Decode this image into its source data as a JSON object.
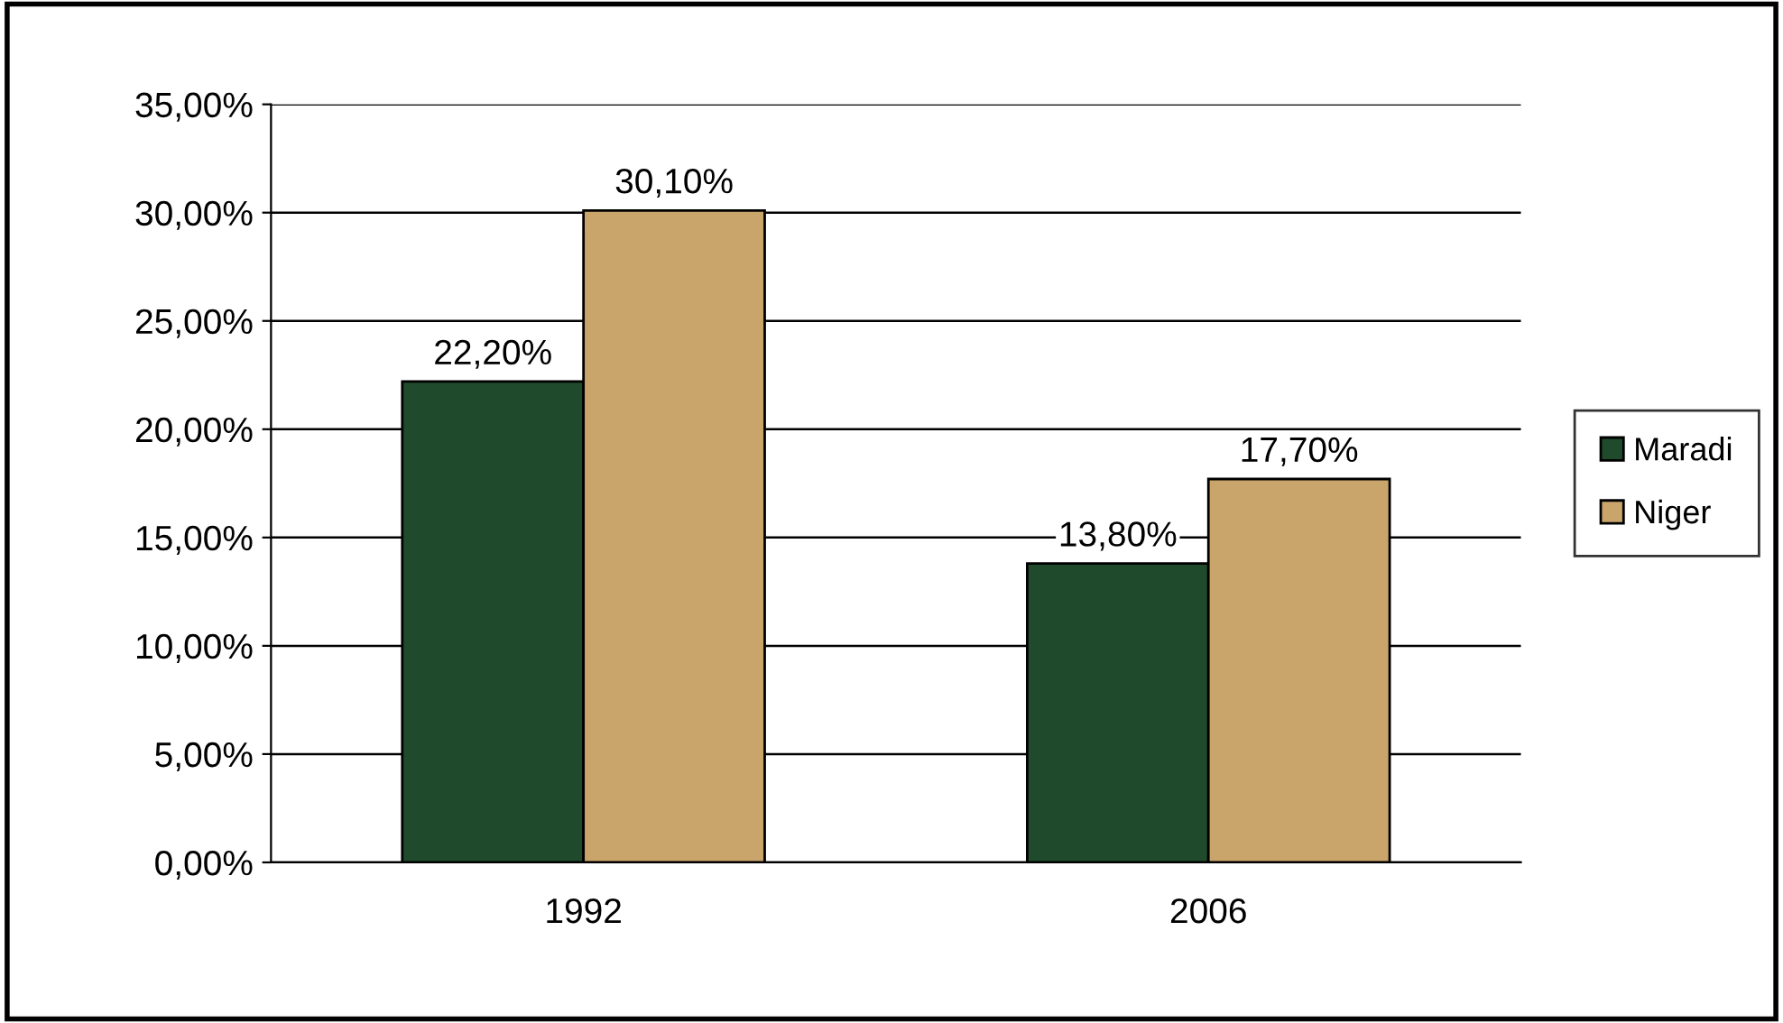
{
  "chart_data": {
    "type": "bar",
    "categories": [
      "1992",
      "2006"
    ],
    "series": [
      {
        "name": "Maradi",
        "color": "#1f4a2c",
        "values": [
          22.2,
          13.8
        ],
        "value_labels": [
          "22,20%",
          "13,80%"
        ]
      },
      {
        "name": "Niger",
        "color": "#c9a56c",
        "values": [
          30.1,
          17.7
        ],
        "value_labels": [
          "30,10%",
          "17,70%"
        ]
      }
    ],
    "ylim": [
      0,
      35
    ],
    "yticks": [
      {
        "value": 0,
        "label": "0,00%"
      },
      {
        "value": 5,
        "label": "5,00%"
      },
      {
        "value": 10,
        "label": "10,00%"
      },
      {
        "value": 15,
        "label": "15,00%"
      },
      {
        "value": 20,
        "label": "20,00%"
      },
      {
        "value": 25,
        "label": "25,00%"
      },
      {
        "value": 30,
        "label": "30,00%"
      },
      {
        "value": 35,
        "label": "35,00%"
      }
    ],
    "grid": "y",
    "legend": "right"
  }
}
